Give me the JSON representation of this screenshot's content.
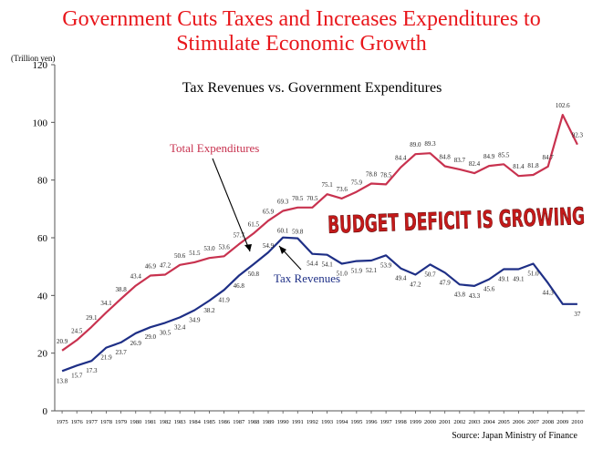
{
  "headline": {
    "line1": "Government Cuts Taxes and Increases Expenditures to",
    "line2": "Stimulate Economic Growth"
  },
  "source": "Source: Japan Ministry of Finance",
  "overlay_text": "BUDGET DEFICIT IS GROWING",
  "colors": {
    "headline": "#e8161b",
    "expenditures": "#c8324f",
    "revenues": "#1e2f86",
    "overlay": "#c41a1a"
  },
  "chart_data": {
    "type": "line",
    "title": "Tax Revenues vs. Government Expenditures",
    "ylabel": "(Trillion yen)",
    "xlabel": "",
    "ylim": [
      0,
      120
    ],
    "yticks": [
      "0",
      "20",
      "40",
      "60",
      "80",
      "100",
      "120"
    ],
    "grid": false,
    "x": [
      "1975",
      "1976",
      "1977",
      "1978",
      "1979",
      "1980",
      "1981",
      "1982",
      "1983",
      "1984",
      "1985",
      "1986",
      "1987",
      "1988",
      "1989",
      "1990",
      "1991",
      "1992",
      "1993",
      "1994",
      "1995",
      "1996",
      "1997",
      "1998",
      "1999",
      "2000",
      "2001",
      "2002",
      "2003",
      "2004",
      "2005",
      "2006",
      "2007",
      "2008",
      "2009",
      "2010"
    ],
    "series": [
      {
        "name": "Total Expenditures",
        "values": [
          20.9,
          24.5,
          29.1,
          34.1,
          38.8,
          43.4,
          46.9,
          47.2,
          50.6,
          51.5,
          53.0,
          53.6,
          57.7,
          61.5,
          65.9,
          69.3,
          70.5,
          70.5,
          75.1,
          73.6,
          75.9,
          78.8,
          78.5,
          84.4,
          89.0,
          89.3,
          84.8,
          83.7,
          82.4,
          84.9,
          85.5,
          81.4,
          81.8,
          84.7,
          102.6,
          92.3
        ],
        "labels": [
          "20.9",
          "24.5",
          "29.1",
          "34.1",
          "38.8",
          "43.4",
          "46.9",
          "47.2",
          "50.6",
          "51.5",
          "53.0",
          "53.6",
          "57.7",
          "61.5",
          "65.9",
          "69.3",
          "70.5",
          "70.5",
          "75.1",
          "73.6",
          "75.9",
          "78.8",
          "78.5",
          "84.4",
          "89.0",
          "89.3",
          "84.8",
          "83.7",
          "82.4",
          "84.9",
          "85.5",
          "81.4",
          "81.8",
          "84.7",
          "102.6",
          "92.3"
        ]
      },
      {
        "name": "Tax Revenues",
        "values": [
          13.8,
          15.7,
          17.3,
          21.9,
          23.7,
          26.9,
          29.0,
          30.5,
          32.4,
          34.9,
          38.2,
          41.9,
          46.8,
          50.8,
          54.9,
          60.1,
          59.8,
          54.4,
          54.1,
          51.0,
          51.9,
          52.1,
          53.9,
          49.4,
          47.2,
          50.7,
          47.9,
          43.8,
          43.3,
          45.6,
          49.1,
          49.1,
          51.0,
          44.3,
          37,
          37
        ],
        "labels": [
          "13.8",
          "15.7",
          "17.3",
          "21.9",
          "23.7",
          "26.9",
          "29.0",
          "30.5",
          "32.4",
          "34.9",
          "38.2",
          "41.9",
          "46.8",
          "50.8",
          "54.9",
          "60.1",
          "59.8",
          "54.4",
          "54.1",
          "51.0",
          "51.9",
          "52.1",
          "53.9",
          "49.4",
          "47.2",
          "50.7",
          "47.9",
          "43.8",
          "43.3",
          "45.6",
          "49.1",
          "49.1",
          "51.0",
          "44.3",
          "",
          "37"
        ]
      }
    ],
    "legend": "inline labels with arrows"
  }
}
